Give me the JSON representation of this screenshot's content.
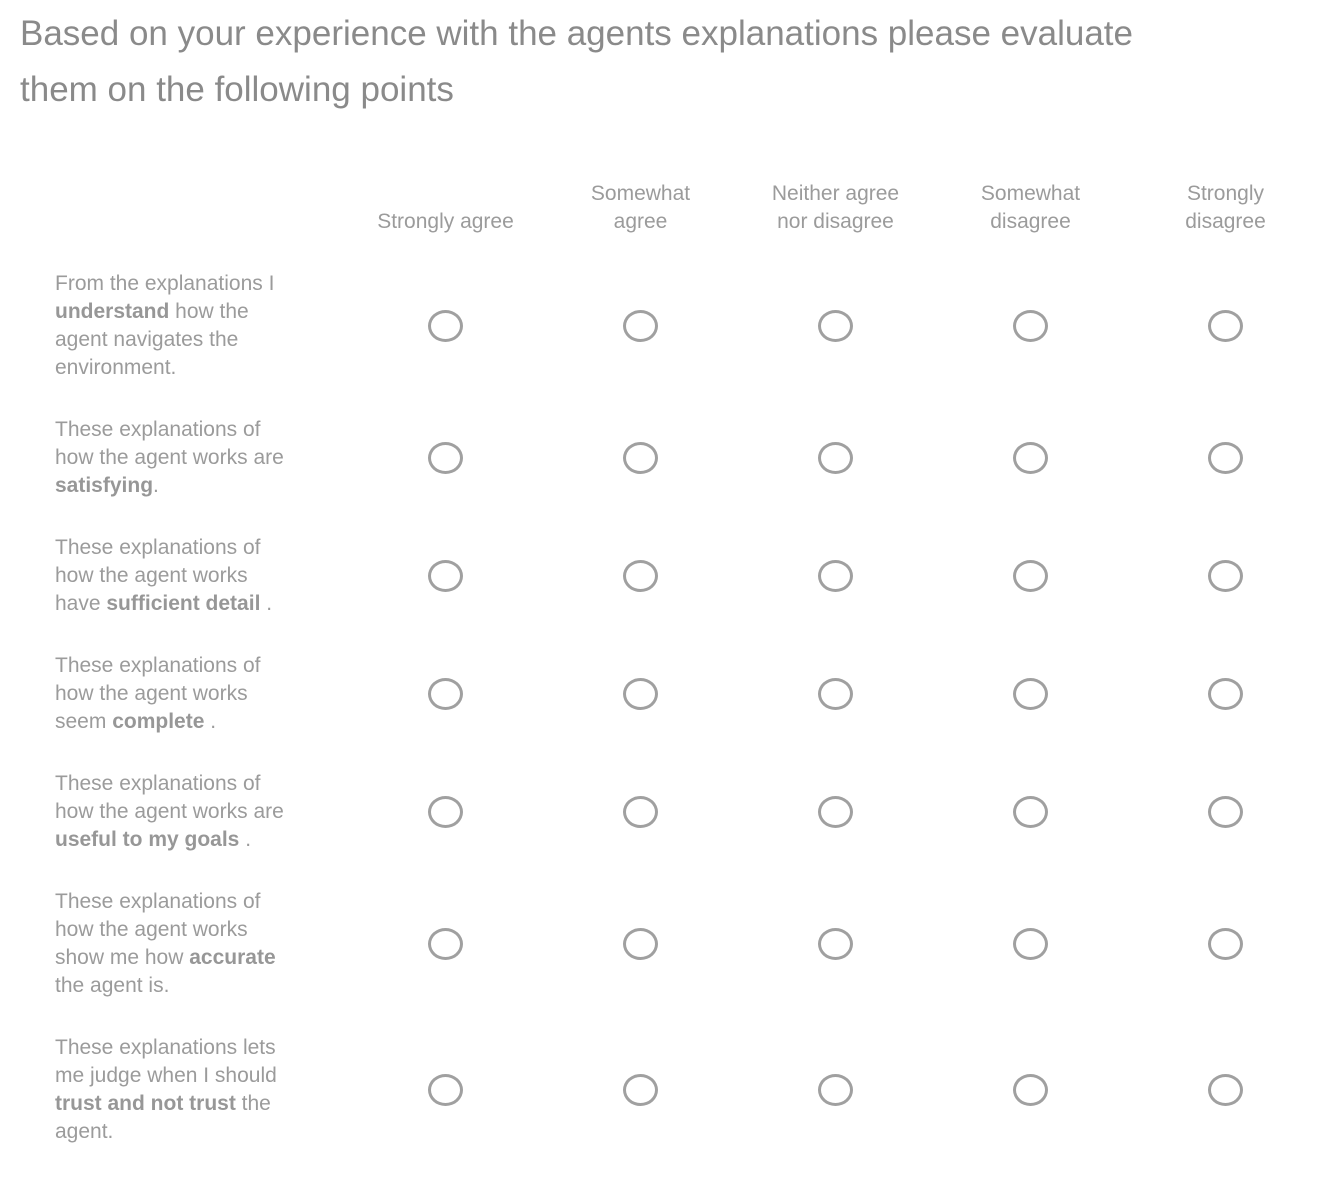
{
  "title": "Based on your experience with the agents explanations please evaluate\nthem on the following points",
  "colors": {
    "background": "#ffffff",
    "title_text": "#8a8a8a",
    "body_text": "#9b9b9b",
    "radio_border": "#a0a0a0"
  },
  "columns": [
    "Strongly agree",
    "Somewhat\nagree",
    "Neither agree\nnor disagree",
    "Somewhat\ndisagree",
    "Strongly\ndisagree"
  ],
  "rows": [
    {
      "pre": "From the explanations I\n",
      "bold": "understand",
      "post": " how the\nagent navigates the\nenvironment.",
      "selected": null
    },
    {
      "pre": "These explanations of\nhow the agent works are\n",
      "bold": "satisfying",
      "post": ".",
      "selected": null
    },
    {
      "pre": "These explanations of\nhow the agent works\nhave ",
      "bold": "sufficient detail",
      "post": " .",
      "selected": null
    },
    {
      "pre": "These explanations of\nhow the agent works\nseem ",
      "bold": "complete",
      "post": " .",
      "selected": null
    },
    {
      "pre": "These explanations of\nhow the agent works are\n",
      "bold": "useful to my goals",
      "post": " .",
      "selected": null
    },
    {
      "pre": "These explanations of\nhow the agent works\nshow me how ",
      "bold": "accurate",
      "post": "\nthe agent is.",
      "selected": null
    },
    {
      "pre": "These explanations lets\nme judge when I should\n",
      "bold": "trust and not trust",
      "post": " the\nagent.",
      "selected": null
    }
  ]
}
